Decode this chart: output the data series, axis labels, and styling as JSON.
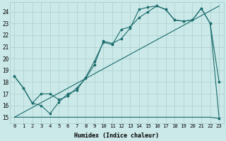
{
  "xlabel": "Humidex (Indice chaleur)",
  "bg_color": "#cce9e9",
  "grid_color": "#aacfcf",
  "line_color": "#1a6b6b",
  "xlim": [
    -0.5,
    23.5
  ],
  "ylim": [
    14.5,
    24.8
  ],
  "xticks": [
    0,
    1,
    2,
    3,
    4,
    5,
    6,
    7,
    8,
    9,
    10,
    11,
    12,
    13,
    14,
    15,
    16,
    17,
    18,
    19,
    20,
    21,
    22,
    23
  ],
  "yticks": [
    15,
    16,
    17,
    18,
    19,
    20,
    21,
    22,
    23,
    24
  ],
  "line_zigzag1": {
    "x": [
      0,
      1,
      2,
      3,
      4,
      5,
      6,
      7,
      8,
      9,
      10,
      11,
      12,
      13,
      14,
      15,
      16,
      17,
      18,
      19,
      20,
      21,
      22,
      23
    ],
    "y": [
      18.5,
      17.5,
      16.2,
      17.0,
      17.0,
      16.5,
      16.8,
      17.5,
      18.3,
      19.5,
      21.5,
      21.3,
      21.7,
      22.6,
      24.2,
      24.4,
      24.5,
      24.2,
      23.3,
      23.2,
      23.3,
      24.3,
      23.0,
      18.0
    ]
  },
  "line_zigzag2": {
    "x": [
      0,
      1,
      2,
      3,
      4,
      5,
      6,
      7,
      8,
      9,
      10,
      11,
      12,
      13,
      14,
      15,
      16,
      17,
      18,
      19,
      20,
      21,
      22,
      23
    ],
    "y": [
      18.5,
      17.5,
      16.2,
      16.0,
      15.3,
      16.3,
      17.0,
      17.3,
      18.4,
      19.8,
      21.4,
      21.2,
      22.5,
      22.7,
      23.5,
      24.0,
      24.5,
      24.2,
      23.3,
      23.2,
      23.3,
      24.3,
      23.0,
      14.9
    ]
  },
  "line_flat": {
    "x": [
      0,
      4,
      22,
      23
    ],
    "y": [
      15.0,
      15.0,
      15.0,
      14.9
    ]
  },
  "line_diagonal": {
    "x": [
      0,
      23
    ],
    "y": [
      15.0,
      24.5
    ]
  }
}
